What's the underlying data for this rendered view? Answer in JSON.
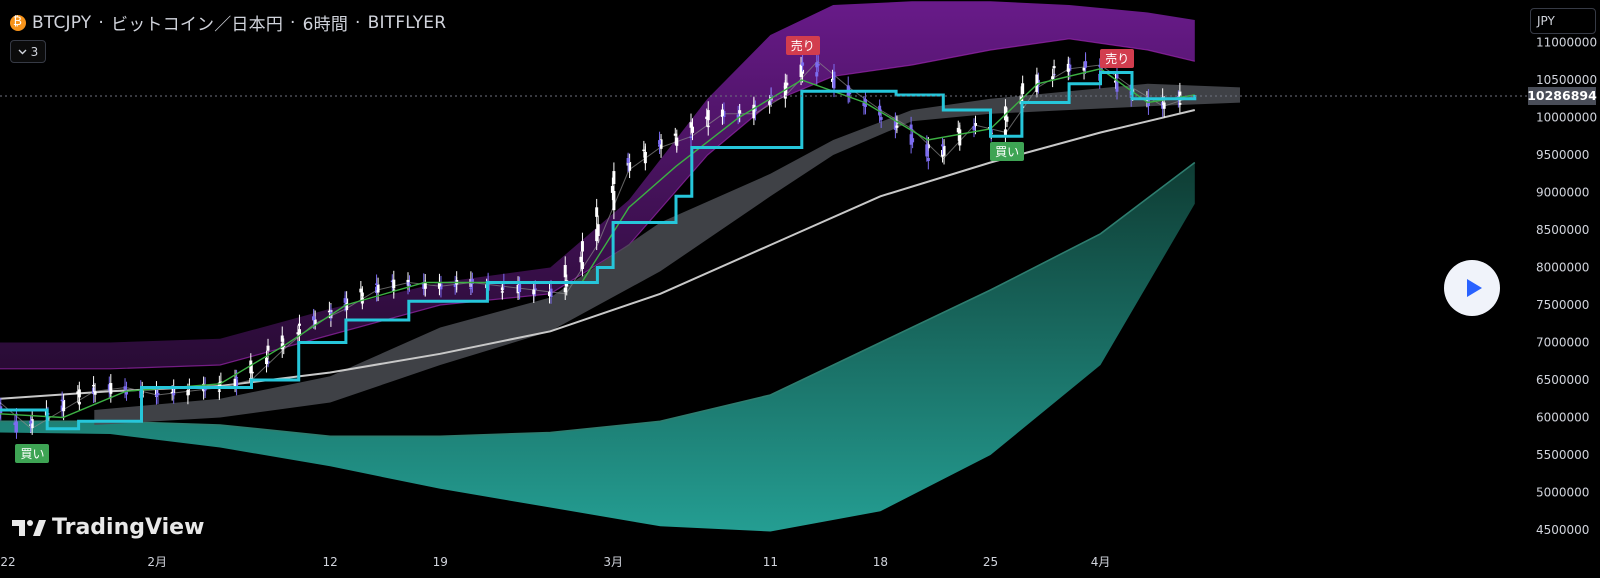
{
  "header": {
    "symbol": "BTCJPY",
    "name": "ビットコイン／日本円",
    "interval": "6時間",
    "exchange": "BITFLYER",
    "coin_icon": "bitcoin-icon"
  },
  "indicators_toggle": {
    "count": "3",
    "icon": "chevron-down-icon"
  },
  "currency": "JPY",
  "current_price_label": "10286894",
  "brand": {
    "name": "TradingView",
    "icon": "tradingview-logo-icon"
  },
  "play_button": {
    "icon": "play-icon"
  },
  "signals": [
    {
      "label": "買い",
      "type": "buy",
      "x_date": "2024-01-24",
      "price": 5520000
    },
    {
      "label": "売り",
      "type": "sell",
      "x_date": "2024-03-13",
      "price": 10950000
    },
    {
      "label": "買い",
      "type": "buy",
      "x_date": "2024-03-26",
      "price": 9540000
    },
    {
      "label": "売り",
      "type": "sell",
      "x_date": "2024-04-02",
      "price": 10780000
    }
  ],
  "colors": {
    "background": "#000000",
    "kijun": "#26c6da",
    "tenkan": "#3cb043",
    "sma": "#c8c8c8",
    "upper_band": "#7b1fa2",
    "lower_band": "#26a69a",
    "cloud": "#4a4c52",
    "cloud_bear": "#6b1a1a",
    "candle_up": "#ffffff",
    "candle_down": "#7c6cf0",
    "sell_tag": "#d23d4e",
    "buy_tag": "#3ea454"
  },
  "chart_data": {
    "type": "line",
    "title": "",
    "xlabel": "",
    "ylabel": "",
    "x_ticks": [
      "22",
      "2月",
      "12",
      "19",
      "3月",
      "11",
      "18",
      "25",
      "4月"
    ],
    "x_tick_dates": [
      "2024-01-22",
      "2024-02-01",
      "2024-02-12",
      "2024-02-19",
      "2024-03-01",
      "2024-03-11",
      "2024-03-18",
      "2024-03-25",
      "2024-04-01"
    ],
    "y_ticks": [
      11000000,
      10500000,
      10000000,
      9500000,
      9000000,
      8500000,
      8000000,
      7500000,
      7000000,
      6500000,
      6000000,
      5500000,
      5000000,
      4500000
    ],
    "ylim": [
      4300000,
      11500000
    ],
    "xlim": [
      "2024-01-22",
      "2024-04-28"
    ],
    "current_price": 10286894,
    "grid": false,
    "series": [
      {
        "key": "price",
        "x": [
          "2024-01-22",
          "2024-01-24",
          "2024-01-26",
          "2024-01-28",
          "2024-01-30",
          "2024-02-01",
          "2024-02-03",
          "2024-02-05",
          "2024-02-07",
          "2024-02-09",
          "2024-02-11",
          "2024-02-13",
          "2024-02-15",
          "2024-02-17",
          "2024-02-19",
          "2024-02-21",
          "2024-02-23",
          "2024-02-25",
          "2024-02-27",
          "2024-02-29",
          "2024-03-02",
          "2024-03-04",
          "2024-03-06",
          "2024-03-08",
          "2024-03-10",
          "2024-03-12",
          "2024-03-14",
          "2024-03-16",
          "2024-03-18",
          "2024-03-20",
          "2024-03-22",
          "2024-03-24",
          "2024-03-26",
          "2024-03-28",
          "2024-03-30",
          "2024-04-01",
          "2024-04-03",
          "2024-04-05",
          "2024-04-07"
        ],
        "y": [
          6200000,
          5850000,
          6100000,
          6350000,
          6400000,
          6300000,
          6350000,
          6400000,
          6500000,
          6900000,
          7250000,
          7450000,
          7700000,
          7800000,
          7750000,
          7800000,
          7750000,
          7700000,
          7650000,
          8300000,
          9300000,
          9600000,
          9750000,
          10050000,
          10050000,
          10300000,
          10750000,
          10400000,
          10100000,
          9850000,
          9450000,
          9900000,
          9800000,
          10400000,
          10650000,
          10700000,
          10400000,
          10150000,
          10286894
        ]
      },
      {
        "key": "kijun",
        "x": [
          "2024-01-22",
          "2024-01-25",
          "2024-01-27",
          "2024-01-31",
          "2024-02-05",
          "2024-02-07",
          "2024-02-10",
          "2024-02-13",
          "2024-02-17",
          "2024-02-22",
          "2024-02-27",
          "2024-02-29",
          "2024-03-01",
          "2024-03-05",
          "2024-03-06",
          "2024-03-12",
          "2024-03-13",
          "2024-03-16",
          "2024-03-19",
          "2024-03-22",
          "2024-03-25",
          "2024-03-27",
          "2024-03-30",
          "2024-04-01",
          "2024-04-03",
          "2024-04-07"
        ],
        "y": [
          6100000,
          5850000,
          5950000,
          6400000,
          6400000,
          6500000,
          7000000,
          7300000,
          7550000,
          7800000,
          7800000,
          8000000,
          8600000,
          8950000,
          9600000,
          9600000,
          10350000,
          10350000,
          10300000,
          10100000,
          9750000,
          10200000,
          10450000,
          10600000,
          10250000,
          10300000
        ]
      },
      {
        "key": "tenkan",
        "x": [
          "2024-01-22",
          "2024-01-26",
          "2024-01-30",
          "2024-02-05",
          "2024-02-09",
          "2024-02-13",
          "2024-02-18",
          "2024-02-23",
          "2024-02-28",
          "2024-03-02",
          "2024-03-05",
          "2024-03-09",
          "2024-03-13",
          "2024-03-17",
          "2024-03-21",
          "2024-03-25",
          "2024-03-28",
          "2024-04-01",
          "2024-04-04",
          "2024-04-07"
        ],
        "y": [
          6050000,
          6000000,
          6350000,
          6450000,
          6950000,
          7500000,
          7800000,
          7800000,
          7800000,
          8800000,
          9350000,
          10000000,
          10500000,
          10200000,
          9700000,
          9850000,
          10450000,
          10650000,
          10200000,
          10300000
        ]
      },
      {
        "key": "sma",
        "x": [
          "2024-01-22",
          "2024-01-29",
          "2024-02-05",
          "2024-02-12",
          "2024-02-19",
          "2024-02-26",
          "2024-03-04",
          "2024-03-11",
          "2024-03-18",
          "2024-03-25",
          "2024-04-01",
          "2024-04-07"
        ],
        "y": [
          6250000,
          6350000,
          6420000,
          6600000,
          6850000,
          7150000,
          7650000,
          8300000,
          8950000,
          9400000,
          9800000,
          10100000
        ]
      },
      {
        "key": "upper_band",
        "x": [
          "2024-01-22",
          "2024-01-29",
          "2024-02-05",
          "2024-02-12",
          "2024-02-19",
          "2024-02-26",
          "2024-03-02",
          "2024-03-07",
          "2024-03-11",
          "2024-03-15",
          "2024-03-20",
          "2024-03-25",
          "2024-03-30",
          "2024-04-04",
          "2024-04-07"
        ],
        "y": [
          7000000,
          7000000,
          7050000,
          7450000,
          7800000,
          8000000,
          8900000,
          10250000,
          11100000,
          11500000,
          11550000,
          11550000,
          11500000,
          11400000,
          11300000
        ]
      },
      {
        "key": "upper_mid",
        "x": [
          "2024-01-22",
          "2024-01-29",
          "2024-02-05",
          "2024-02-12",
          "2024-02-19",
          "2024-02-26",
          "2024-03-02",
          "2024-03-07",
          "2024-03-11",
          "2024-03-15",
          "2024-03-20",
          "2024-03-25",
          "2024-03-30",
          "2024-04-04",
          "2024-04-07"
        ],
        "y": [
          6650000,
          6650000,
          6700000,
          7100000,
          7500000,
          7650000,
          8300000,
          9500000,
          10200000,
          10550000,
          10700000,
          10900000,
          11050000,
          10900000,
          10750000
        ]
      },
      {
        "key": "lower_band",
        "x": [
          "2024-01-22",
          "2024-01-29",
          "2024-02-05",
          "2024-02-12",
          "2024-02-19",
          "2024-02-26",
          "2024-03-04",
          "2024-03-11",
          "2024-03-18",
          "2024-03-25",
          "2024-04-01",
          "2024-04-07"
        ],
        "y": [
          5950000,
          5950000,
          5900000,
          5750000,
          5750000,
          5800000,
          5950000,
          6300000,
          7000000,
          7700000,
          8450000,
          9400000
        ]
      },
      {
        "key": "lower_floor",
        "x": [
          "2024-01-22",
          "2024-01-29",
          "2024-02-05",
          "2024-02-12",
          "2024-02-19",
          "2024-02-26",
          "2024-03-04",
          "2024-03-11",
          "2024-03-18",
          "2024-03-25",
          "2024-04-01",
          "2024-04-07"
        ],
        "y": [
          5800000,
          5780000,
          5600000,
          5350000,
          5050000,
          4800000,
          4550000,
          4480000,
          4750000,
          5500000,
          6700000,
          8850000
        ]
      },
      {
        "key": "cloud_top",
        "x": [
          "2024-01-28",
          "2024-02-05",
          "2024-02-12",
          "2024-02-19",
          "2024-02-26",
          "2024-03-04",
          "2024-03-11",
          "2024-03-15",
          "2024-03-20",
          "2024-03-25",
          "2024-03-30",
          "2024-04-04",
          "2024-04-10",
          "2024-04-12"
        ],
        "y": [
          6100000,
          6250000,
          6550000,
          7200000,
          7600000,
          8600000,
          9250000,
          9700000,
          10100000,
          10250000,
          10350000,
          10450000,
          10400000,
          10300000
        ]
      },
      {
        "key": "cloud_bottom",
        "x": [
          "2024-01-28",
          "2024-02-05",
          "2024-02-12",
          "2024-02-19",
          "2024-02-26",
          "2024-03-04",
          "2024-03-11",
          "2024-03-15",
          "2024-03-20",
          "2024-03-25",
          "2024-03-30",
          "2024-04-04",
          "2024-04-10",
          "2024-04-12"
        ],
        "y": [
          5900000,
          6000000,
          6200000,
          6700000,
          7150000,
          7950000,
          8950000,
          9500000,
          9950000,
          10050000,
          10100000,
          10150000,
          10200000,
          10300000
        ]
      }
    ]
  }
}
